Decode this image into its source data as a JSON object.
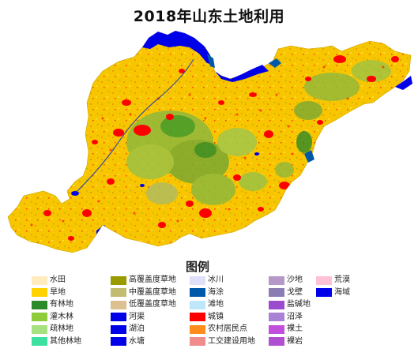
{
  "title": "2018年山东土地利用",
  "legend": {
    "title": "图例",
    "columns": [
      [
        {
          "label": "水田",
          "color": "#ffebbe"
        },
        {
          "label": "旱地",
          "color": "#ffd200"
        },
        {
          "label": "有林地",
          "color": "#2d8a28"
        },
        {
          "label": "灌木林",
          "color": "#8fcc3c"
        },
        {
          "label": "疏林地",
          "color": "#a6e080"
        },
        {
          "label": "其他林地",
          "color": "#3ce0a0"
        }
      ],
      [
        {
          "label": "高覆盖度草地",
          "color": "#999900"
        },
        {
          "label": "中覆盖度草地",
          "color": "#c2bc70"
        },
        {
          "label": "低覆盖度草地",
          "color": "#dcc090"
        },
        {
          "label": "河渠",
          "color": "#0000e8"
        },
        {
          "label": "湖泊",
          "color": "#0000e8"
        },
        {
          "label": "水塘",
          "color": "#0000e8"
        }
      ],
      [
        {
          "label": "冰川",
          "color": "#e0e0f8"
        },
        {
          "label": "海涂",
          "color": "#0058a8"
        },
        {
          "label": "滩地",
          "color": "#bee8fa"
        },
        {
          "label": "城镇",
          "color": "#ff0000"
        },
        {
          "label": "农村居民点",
          "color": "#ff8c1e"
        },
        {
          "label": "工交建设用地",
          "color": "#f08c8c"
        }
      ],
      [
        {
          "label": "沙地",
          "color": "#b498c8"
        },
        {
          "label": "戈壁",
          "color": "#8c7cb4"
        },
        {
          "label": "盐碱地",
          "color": "#9a4ccc"
        },
        {
          "label": "沼泽",
          "color": "#a882d4"
        },
        {
          "label": "裸土",
          "color": "#c050dc"
        },
        {
          "label": "裸岩",
          "color": "#b050d0"
        }
      ],
      [
        {
          "label": "荒漠",
          "color": "#ffc0d8"
        },
        {
          "label": "海域",
          "color": "#0000e8"
        }
      ]
    ]
  }
}
